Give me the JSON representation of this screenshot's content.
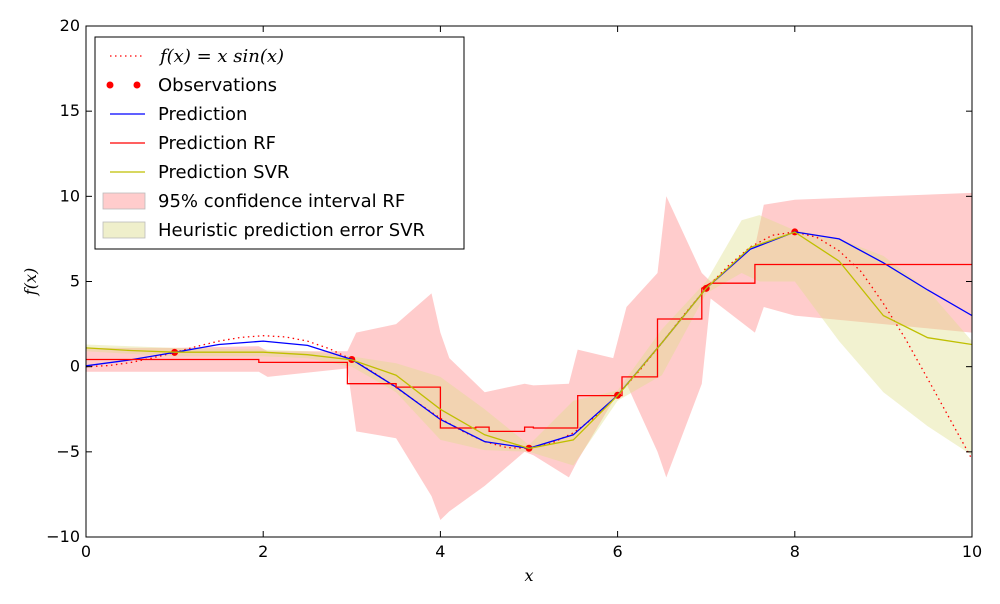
{
  "chart_data": {
    "type": "line",
    "title": "",
    "xlabel": "x",
    "ylabel": "f(x)",
    "xlim": [
      0,
      10
    ],
    "ylim": [
      -10,
      20
    ],
    "x_ticks": [
      0,
      2,
      4,
      6,
      8,
      10
    ],
    "y_ticks": [
      -10,
      -5,
      0,
      5,
      10,
      15,
      20
    ],
    "x_tick_labels": [
      "0",
      "2",
      "4",
      "6",
      "8",
      "10"
    ],
    "y_tick_labels": [
      "−10",
      "−5",
      "0",
      "5",
      "10",
      "15",
      "20"
    ],
    "legend_position": "top-left",
    "legend": [
      {
        "label": "f(x) = x sin(x)",
        "style": "dotted-line",
        "color": "#ff0000"
      },
      {
        "label": "Observations",
        "style": "points",
        "color": "#ff0000"
      },
      {
        "label": "Prediction",
        "style": "line",
        "color": "#0000ff"
      },
      {
        "label": "Prediction RF",
        "style": "line",
        "color": "#ff0000"
      },
      {
        "label": "Prediction SVR",
        "style": "line",
        "color": "#bfbf00"
      },
      {
        "label": "95% confidence interval RF",
        "style": "patch",
        "color": "#ffcccc"
      },
      {
        "label": "Heuristic prediction error SVR",
        "style": "patch",
        "color": "#efefcb"
      }
    ],
    "series": [
      {
        "name": "f(x) = x sin(x)",
        "kind": "dotted",
        "color": "#ff0000",
        "x": [
          0,
          0.25,
          0.5,
          0.75,
          1,
          1.25,
          1.5,
          1.75,
          2,
          2.25,
          2.5,
          2.75,
          3,
          3.25,
          3.5,
          3.75,
          4,
          4.25,
          4.5,
          4.75,
          5,
          5.25,
          5.5,
          5.75,
          6,
          6.25,
          6.5,
          6.75,
          7,
          7.25,
          7.5,
          7.75,
          8,
          8.25,
          8.5,
          8.75,
          9,
          9.25,
          9.5,
          9.75,
          10
        ],
        "y": [
          0,
          0.06,
          0.24,
          0.51,
          0.84,
          1.19,
          1.5,
          1.72,
          1.82,
          1.75,
          1.5,
          1.05,
          0.42,
          -0.35,
          -1.23,
          -2.14,
          -3.03,
          -3.79,
          -4.4,
          -4.75,
          -4.79,
          -4.5,
          -3.89,
          -2.93,
          -1.68,
          -0.21,
          1.4,
          3.05,
          4.6,
          5.93,
          7.04,
          7.72,
          7.91,
          7.59,
          6.8,
          5.57,
          3.71,
          1.62,
          -0.71,
          -3.08,
          -5.44
        ]
      },
      {
        "name": "Observations",
        "kind": "points",
        "color": "#ff0000",
        "x": [
          1,
          3,
          5,
          6,
          7,
          8
        ],
        "y": [
          0.84,
          0.42,
          -4.79,
          -1.68,
          4.6,
          7.91
        ]
      },
      {
        "name": "Prediction",
        "kind": "line",
        "color": "#0000ff",
        "x": [
          0,
          0.5,
          1,
          1.5,
          2,
          2.5,
          3,
          3.5,
          4,
          4.5,
          5,
          5.5,
          6,
          6.5,
          7,
          7.5,
          8,
          8.5,
          9,
          9.5,
          10
        ],
        "y": [
          0.05,
          0.4,
          0.84,
          1.3,
          1.5,
          1.25,
          0.42,
          -1.2,
          -3.1,
          -4.4,
          -4.79,
          -4.0,
          -1.68,
          1.4,
          4.6,
          6.9,
          7.91,
          7.5,
          6.1,
          4.5,
          3.0
        ]
      },
      {
        "name": "Prediction RF",
        "kind": "step",
        "color": "#ff0000",
        "x": [
          0,
          1.95,
          1.95,
          2.95,
          2.95,
          3.5,
          3.5,
          4,
          4,
          4.4,
          4.4,
          4.55,
          4.55,
          4.95,
          4.95,
          5.05,
          5.05,
          5.55,
          5.55,
          5.95,
          5.95,
          6.05,
          6.05,
          6.45,
          6.45,
          6.95,
          6.95,
          7.05,
          7.05,
          7.55,
          7.55,
          10
        ],
        "y": [
          0.42,
          0.42,
          0.25,
          0.25,
          -1.0,
          -1.0,
          -1.2,
          -1.2,
          -3.6,
          -3.6,
          -3.55,
          -3.55,
          -3.8,
          -3.8,
          -3.55,
          -3.55,
          -3.6,
          -3.6,
          -1.7,
          -1.7,
          -1.7,
          -1.7,
          -0.6,
          -0.6,
          2.8,
          2.8,
          4.6,
          4.9,
          4.9,
          4.9,
          6.0,
          6.0
        ]
      },
      {
        "name": "Prediction SVR",
        "kind": "line",
        "color": "#bfbf00",
        "x": [
          0,
          0.5,
          1,
          1.5,
          2,
          2.5,
          3,
          3.5,
          4,
          4.5,
          5,
          5.5,
          6,
          6.5,
          7,
          7.5,
          8,
          8.5,
          9,
          9.5,
          10
        ],
        "y": [
          1.1,
          0.95,
          0.85,
          0.85,
          0.85,
          0.7,
          0.4,
          -0.5,
          -2.5,
          -4.0,
          -4.8,
          -4.3,
          -1.7,
          1.4,
          4.6,
          7.0,
          7.9,
          6.2,
          3.0,
          1.7,
          1.3
        ]
      }
    ],
    "bands": [
      {
        "name": "95% confidence interval RF",
        "color": "#ff9999",
        "opacity": 0.5,
        "x": [
          0,
          1,
          1.95,
          2.05,
          2.95,
          3.05,
          3.5,
          3.9,
          4.0,
          4.1,
          4.5,
          4.95,
          5.05,
          5.45,
          5.55,
          5.95,
          6.1,
          6.45,
          6.55,
          6.95,
          7.05,
          7.55,
          7.65,
          8,
          9,
          10
        ],
        "lower": [
          -0.3,
          -0.3,
          -0.3,
          -0.6,
          -0.1,
          -3.8,
          -4.2,
          -7.6,
          -9.0,
          -8.5,
          -7.0,
          -5.0,
          -5.2,
          -6.5,
          -5.5,
          -2.0,
          -1.0,
          -5.0,
          -6.5,
          -1.0,
          4.0,
          2.0,
          3.5,
          3.0,
          2.5,
          2.0
        ],
        "upper": [
          1.1,
          1.1,
          1.2,
          0.9,
          0.9,
          2.0,
          2.5,
          4.3,
          2.0,
          0.5,
          -1.5,
          -1.0,
          -1.1,
          -1.0,
          1.0,
          0.5,
          3.5,
          5.5,
          10.0,
          5.5,
          5.0,
          7.0,
          9.5,
          9.8,
          10.0,
          10.2
        ]
      },
      {
        "name": "Heuristic prediction error SVR",
        "color": "#dede8a",
        "opacity": 0.4,
        "x": [
          0,
          1,
          2,
          2.5,
          3,
          3.5,
          4,
          4.5,
          5,
          5.5,
          6,
          6.5,
          7,
          7.4,
          7.6,
          8,
          8.5,
          9,
          9.5,
          10
        ],
        "lower": [
          0.9,
          0.6,
          0.6,
          0.5,
          0.0,
          -1.5,
          -4.3,
          -4.9,
          -5.0,
          -5.8,
          -2.0,
          -0.5,
          4.3,
          5.5,
          5.0,
          5.0,
          1.5,
          -1.5,
          -3.5,
          -5.2
        ],
        "upper": [
          1.3,
          1.1,
          1.0,
          0.9,
          0.6,
          0.2,
          -0.6,
          -2.5,
          -4.6,
          -2.0,
          -1.4,
          2.2,
          5.0,
          8.6,
          8.9,
          8.0,
          7.5,
          6.5,
          4.5,
          1.5
        ]
      }
    ]
  }
}
